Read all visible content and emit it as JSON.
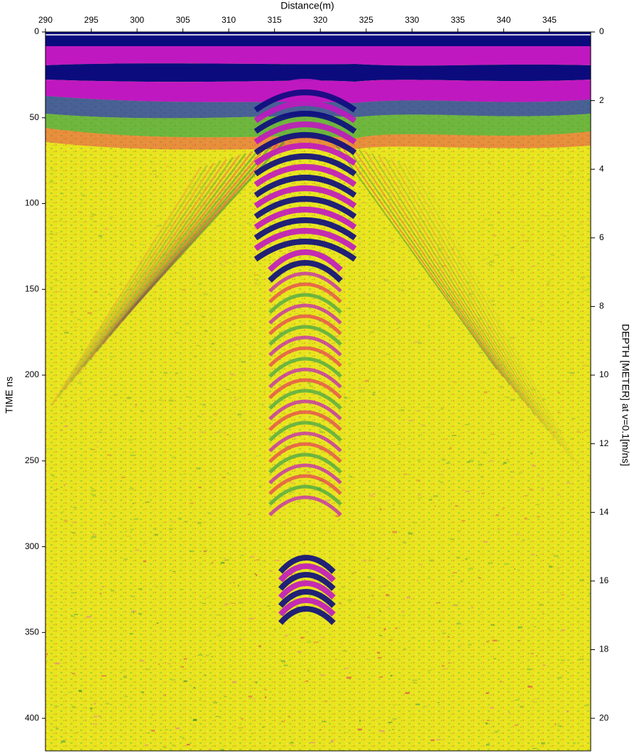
{
  "chart_data": {
    "type": "radargram",
    "title": "Distance(m)",
    "y_label": "TIME ns",
    "y2_label": "DEPTH [METER] at v=0.1[m/ns]",
    "xlim": [
      290,
      349.5
    ],
    "xticks": [
      290,
      295,
      300,
      305,
      310,
      315,
      320,
      325,
      330,
      335,
      340,
      345
    ],
    "ylim": [
      0,
      419
    ],
    "yticks": [
      0,
      50,
      100,
      150,
      200,
      250,
      300,
      350,
      400
    ],
    "y2lim": [
      0,
      20.95
    ],
    "y2ticks": [
      0,
      2,
      4,
      6,
      8,
      10,
      12,
      14,
      16,
      18,
      20
    ]
  }
}
